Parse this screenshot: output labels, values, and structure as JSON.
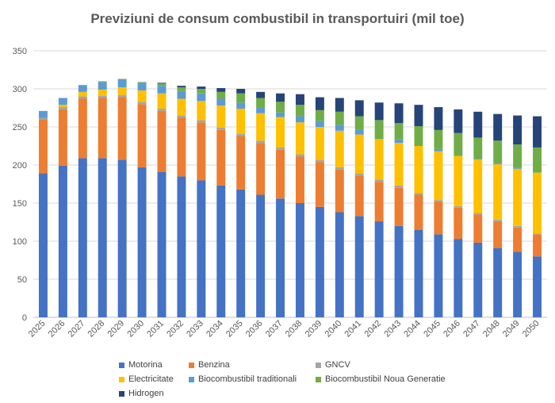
{
  "chart_data": {
    "type": "bar",
    "stacked": true,
    "title": "Previziuni de consum combustibil in transportuiri (mil toe)",
    "xlabel": "",
    "ylabel": "",
    "ylim": [
      0,
      350
    ],
    "yticks": [
      0,
      50,
      100,
      150,
      200,
      250,
      300,
      350
    ],
    "grid": true,
    "legend_position": "bottom",
    "categories": [
      "2025",
      "2026",
      "2027",
      "2028",
      "2029",
      "2030",
      "2031",
      "2032",
      "2033",
      "2034",
      "2035",
      "2036",
      "2037",
      "2038",
      "2039",
      "2040",
      "2041",
      "2042",
      "2043",
      "2044",
      "2045",
      "2046",
      "2047",
      "2048",
      "2049",
      "2050"
    ],
    "series": [
      {
        "name": "Motorina",
        "color": "#4472C4",
        "values": [
          189,
          199,
          209,
          209,
          207,
          197,
          191,
          185,
          180,
          173,
          168,
          161,
          156,
          150,
          145,
          138,
          133,
          126,
          120,
          115,
          109,
          103,
          98,
          91,
          86,
          80
        ]
      },
      {
        "name": "Benzina",
        "color": "#ED7D31",
        "values": [
          71,
          74,
          78,
          79,
          82,
          83,
          80,
          77,
          76,
          73,
          70,
          68,
          64,
          61,
          59,
          56,
          53,
          52,
          50,
          46,
          43,
          41,
          37,
          35,
          32,
          29
        ]
      },
      {
        "name": "GNCV",
        "color": "#A5A5A5",
        "values": [
          2,
          3,
          3,
          3,
          3,
          3,
          3,
          3,
          3,
          3,
          3,
          3,
          3,
          3,
          3,
          3,
          3,
          3,
          3,
          2,
          2,
          2,
          2,
          2,
          2,
          1
        ]
      },
      {
        "name": "Electricitate",
        "color": "#FFC000",
        "values": [
          0,
          3,
          6,
          8,
          10,
          15,
          20,
          22,
          25,
          29,
          33,
          36,
          40,
          42,
          43,
          48,
          51,
          53,
          56,
          62,
          64,
          66,
          70,
          73,
          75,
          80
        ]
      },
      {
        "name": "Biocombustibil traditionali",
        "color": "#5B9BD5",
        "values": [
          9,
          9,
          9,
          10,
          10,
          10,
          10,
          10,
          10,
          9,
          8,
          8,
          6,
          8,
          8,
          8,
          6,
          0,
          5,
          0,
          3,
          0,
          1,
          2,
          1,
          0
        ]
      },
      {
        "name": "Biocombustibil Noua Generatie",
        "color": "#70AD47",
        "values": [
          0,
          0,
          0,
          1,
          1,
          1,
          3,
          5,
          6,
          9,
          12,
          12,
          14,
          15,
          14,
          17,
          18,
          25,
          21,
          26,
          25,
          30,
          28,
          29,
          31,
          33
        ]
      },
      {
        "name": "Hidrogen",
        "color": "#264478",
        "values": [
          0,
          0,
          0,
          0,
          0,
          0,
          1,
          2,
          3,
          5,
          6,
          8,
          11,
          14,
          17,
          18,
          21,
          23,
          26,
          28,
          30,
          31,
          34,
          35,
          38,
          41
        ]
      }
    ]
  }
}
